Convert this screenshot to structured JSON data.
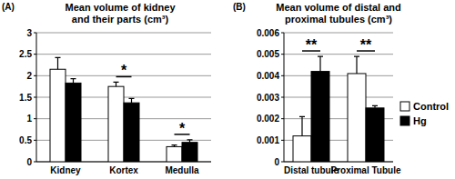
{
  "chart_data": [
    {
      "type": "bar",
      "panel": "(A)",
      "title": "Mean volume of kidney\nand their parts (cm³)",
      "categories": [
        "Kidney",
        "Kortex",
        "Medulla"
      ],
      "series": [
        {
          "name": "Control",
          "color": "#ffffff",
          "values": [
            2.15,
            1.75,
            0.35
          ],
          "errors": [
            0.27,
            0.1,
            0.04
          ]
        },
        {
          "name": "Hg",
          "color": "#000000",
          "values": [
            1.83,
            1.37,
            0.45
          ],
          "errors": [
            0.1,
            0.1,
            0.06
          ]
        }
      ],
      "significance": [
        null,
        "*",
        "*"
      ],
      "ylim": [
        0,
        3
      ],
      "yticks": [
        0,
        0.5,
        1,
        1.5,
        2,
        2.5,
        3
      ],
      "grid": true
    },
    {
      "type": "bar",
      "panel": "(B)",
      "title": "Mean volume of distal and\nproximal tubules (cm³)",
      "categories": [
        "Distal tubule",
        "Proximal Tubule"
      ],
      "series": [
        {
          "name": "Control",
          "color": "#ffffff",
          "values": [
            0.0012,
            0.0041
          ],
          "errors": [
            0.0009,
            0.0008
          ]
        },
        {
          "name": "Hg",
          "color": "#000000",
          "values": [
            0.0042,
            0.0025
          ],
          "errors": [
            0.0007,
            0.0001
          ]
        }
      ],
      "significance": [
        "**",
        "**"
      ],
      "ylim": [
        0,
        0.006
      ],
      "yticks": [
        0,
        0.001,
        0.002,
        0.003,
        0.004,
        0.005,
        0.006
      ],
      "grid": true,
      "legend": "right"
    }
  ]
}
